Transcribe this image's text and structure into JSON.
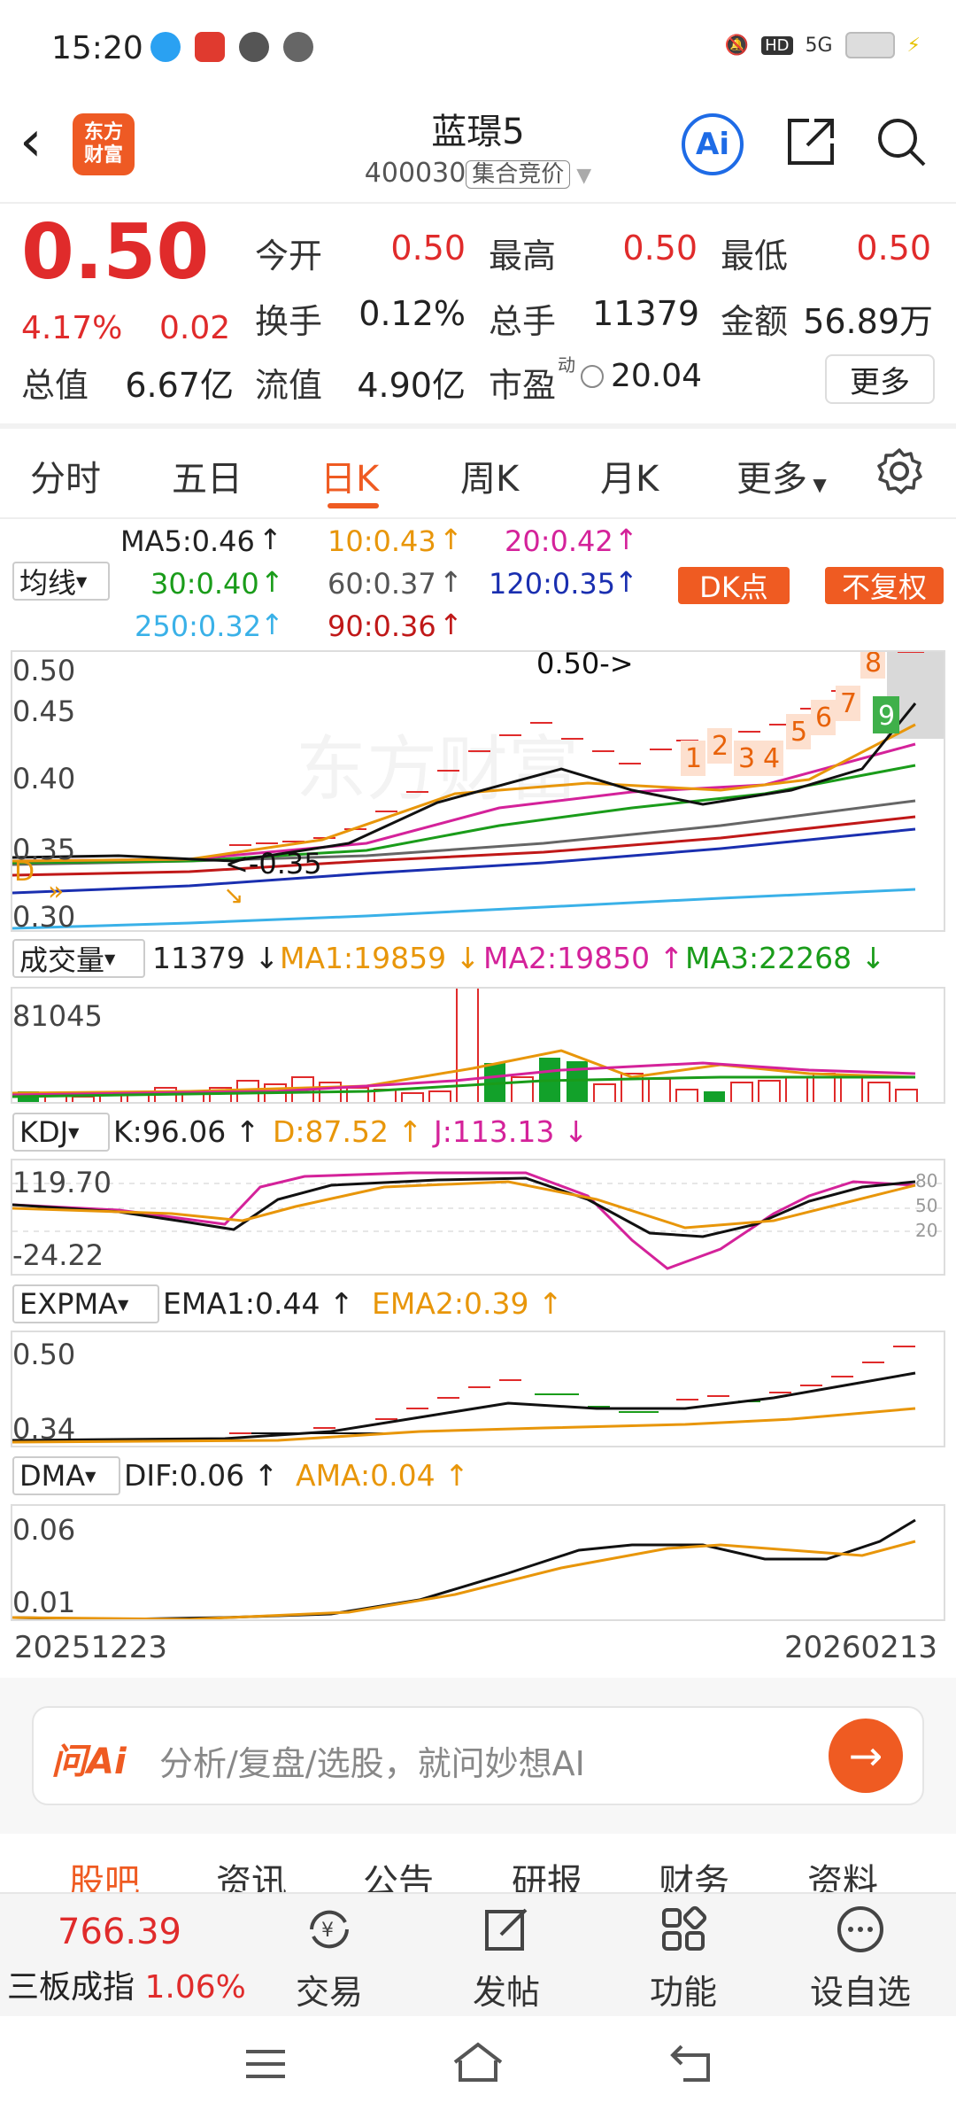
{
  "status": {
    "time": "15:20",
    "network": "5G"
  },
  "header": {
    "name": "蓝璟5",
    "code": "400030",
    "tag": "集合竞价",
    "ai": "Ai"
  },
  "quote": {
    "price": "0.50",
    "pct": "4.17%",
    "chg": "0.02",
    "open_label": "今开",
    "open": "0.50",
    "high_label": "最高",
    "high": "0.50",
    "low_label": "最低",
    "low": "0.50",
    "turnover_label": "换手",
    "turnover": "0.12%",
    "volume_label": "总手",
    "volume": "11379",
    "amount_label": "金额",
    "amount": "56.89万",
    "mcap_label": "总值",
    "mcap": "6.67亿",
    "float_label": "流值",
    "float": "4.90亿",
    "pe_label": "市盈",
    "pe_sup": "动",
    "pe": "20.04",
    "more": "更多"
  },
  "tabs": [
    "分时",
    "五日",
    "日K",
    "周K",
    "月K",
    "更多"
  ],
  "ma": {
    "selector": "均线",
    "ma5": "MA5:0.46",
    "ma10": "10:0.43",
    "ma20": "20:0.42",
    "ma30": "30:0.40",
    "ma60": "60:0.37",
    "ma120": "120:0.35",
    "ma250": "250:0.32",
    "ma90": "90:0.36",
    "dk": "DK点",
    "fq": "不复权"
  },
  "kline": {
    "y_labels": [
      "0.50",
      "0.45",
      "0.40",
      "0.35",
      "0.30"
    ],
    "last_price_marker": "0.50->",
    "low_marker": "<-0.35",
    "b_marker": "D",
    "seq_red": [
      "1",
      "2",
      "3",
      "4",
      "5",
      "6",
      "7",
      "8"
    ],
    "seq_green": "9",
    "watermark": "东方财富"
  },
  "volume": {
    "selector": "成交量",
    "value": "11379",
    "ma1": "MA1:19859",
    "ma2": "MA2:19850",
    "ma3": "MA3:22268",
    "max": "81045"
  },
  "kdj": {
    "selector": "KDJ",
    "k": "K:96.06",
    "d": "D:87.52",
    "j": "J:113.13",
    "max": "119.70",
    "min": "-24.22",
    "levels": [
      "80",
      "50",
      "20"
    ]
  },
  "expma": {
    "selector": "EXPMA",
    "ema1": "EMA1:0.44",
    "ema2": "EMA2:0.39",
    "max": "0.50",
    "min": "0.34"
  },
  "dma": {
    "selector": "DMA",
    "dif": "DIF:0.06",
    "ama": "AMA:0.04",
    "max": "0.06",
    "min": "0.01"
  },
  "dates": {
    "start": "20251223",
    "end": "20260213"
  },
  "ask_ai": {
    "logo": "问Ai",
    "placeholder": "分析/复盘/选股，就问妙想AI"
  },
  "sections": [
    "股吧",
    "资讯",
    "公告",
    "研报",
    "财务",
    "资料"
  ],
  "bottom": {
    "index_value": "766.39",
    "index_name": "三板成指",
    "index_pct": "1.06%",
    "trade": "交易",
    "post": "发帖",
    "func": "功能",
    "watch": "设自选"
  }
}
